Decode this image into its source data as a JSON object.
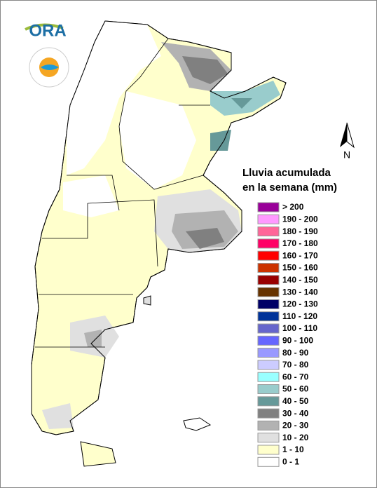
{
  "logo": {
    "text": "ORA"
  },
  "north_arrow": {
    "label": "N"
  },
  "legend": {
    "title_lines": [
      "Lluvia acumulada",
      "en la semana (mm)"
    ],
    "items": [
      {
        "label": "> 200",
        "color": "#990099"
      },
      {
        "label": "190 - 200",
        "color": "#ff99ff"
      },
      {
        "label": "180 - 190",
        "color": "#ff6699"
      },
      {
        "label": "170 - 180",
        "color": "#ff0066"
      },
      {
        "label": "160 - 170",
        "color": "#ff0000"
      },
      {
        "label": "150 - 160",
        "color": "#cc3300"
      },
      {
        "label": "140 - 150",
        "color": "#990000"
      },
      {
        "label": "130 - 140",
        "color": "#663300"
      },
      {
        "label": "120 - 130",
        "color": "#000066"
      },
      {
        "label": "110 - 120",
        "color": "#003399"
      },
      {
        "label": "100 - 110",
        "color": "#6666cc"
      },
      {
        "label": "90 - 100",
        "color": "#6666ff"
      },
      {
        "label": "80 - 90",
        "color": "#9999ff"
      },
      {
        "label": "70 - 80",
        "color": "#ccccff"
      },
      {
        "label": "60 - 70",
        "color": "#99ffff"
      },
      {
        "label": "50 - 60",
        "color": "#99cccc"
      },
      {
        "label": "40 - 50",
        "color": "#669999"
      },
      {
        "label": "30 - 40",
        "color": "#808080"
      },
      {
        "label": "20 - 30",
        "color": "#b2b2b2"
      },
      {
        "label": "10 - 20",
        "color": "#e0e0e0"
      },
      {
        "label": "1 - 10",
        "color": "#ffffcc"
      },
      {
        "label": "0 - 1",
        "color": "#ffffff"
      }
    ]
  }
}
